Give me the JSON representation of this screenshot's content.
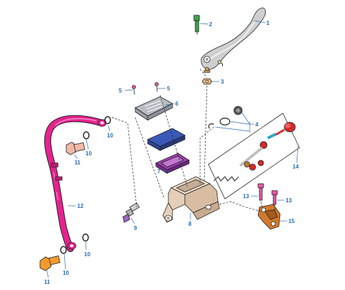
{
  "colors": {
    "background": "#ffffff",
    "label": "#2a6bb0",
    "hose": "#e4238f",
    "banjo_bolt_top": "#f0b8a8",
    "banjo_bolt_bottom": "#f29a2e",
    "lever_silver": "#cfcfcf",
    "pin_green": "#3ea24a",
    "cover_gray": "#b9bcc4",
    "diaphragm_blue": "#3a58b8",
    "gasket_purple": "#9a3fae",
    "body_tan": "#e6cfb8",
    "piston_red": "#d42a2a",
    "clamp_copper": "#d07a2c",
    "screw_pink": "#e35aa8"
  },
  "labels": {
    "l1": "1",
    "l2": "2",
    "l3": "3",
    "l4": "4",
    "l5a": "5",
    "l5b": "5",
    "l6": "6",
    "l7": "7",
    "l8": "8",
    "l9": "9",
    "l10a": "10",
    "l10b": "10",
    "l10c": "10",
    "l10d": "10",
    "l11a": "11",
    "l11b": "11",
    "l12": "12",
    "l13a": "13",
    "l13b": "13",
    "l14": "14",
    "l15": "15"
  }
}
